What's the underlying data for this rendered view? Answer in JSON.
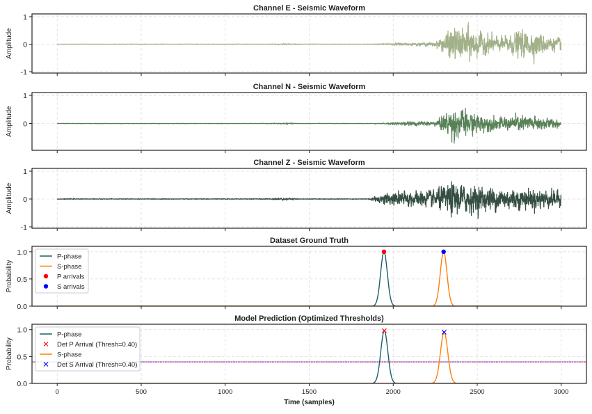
{
  "chart_data": [
    {
      "type": "line",
      "title": "Channel E - Seismic Waveform",
      "ylabel": "Amplitude",
      "xlim": [
        -150,
        3150
      ],
      "ylim": [
        -1.05,
        1.1
      ],
      "yticks": [
        "-1",
        "0",
        "1"
      ],
      "grid": true,
      "color": "#a3b18a",
      "envelope_bin_samples": 100,
      "envelope": [
        0.01,
        0.01,
        0.01,
        0.01,
        0.01,
        0.01,
        0.01,
        0.01,
        0.01,
        0.01,
        0.01,
        0.01,
        0.01,
        0.03,
        0.01,
        0.01,
        0.01,
        0.01,
        0.01,
        0.03,
        0.07,
        0.08,
        0.12,
        0.9,
        1.0,
        0.6,
        0.4,
        0.8,
        0.75,
        0.4
      ]
    },
    {
      "type": "line",
      "title": "Channel N - Seismic Waveform",
      "ylabel": "Amplitude",
      "xlim": [
        -150,
        3150
      ],
      "ylim": [
        -0.95,
        1.1
      ],
      "yticks": [
        "0",
        "1"
      ],
      "grid": true,
      "color": "#588157",
      "envelope_bin_samples": 100,
      "envelope": [
        0.01,
        0.01,
        0.01,
        0.01,
        0.01,
        0.01,
        0.01,
        0.01,
        0.01,
        0.01,
        0.01,
        0.01,
        0.01,
        0.025,
        0.01,
        0.01,
        0.01,
        0.01,
        0.01,
        0.02,
        0.1,
        0.12,
        0.15,
        0.9,
        0.7,
        0.45,
        0.35,
        0.5,
        0.45,
        0.25
      ]
    },
    {
      "type": "line",
      "title": "Channel Z - Seismic Waveform",
      "ylabel": "Amplitude",
      "xlim": [
        -150,
        3150
      ],
      "ylim": [
        -1.05,
        1.1
      ],
      "yticks": [
        "-1",
        "0",
        "1"
      ],
      "grid": true,
      "color": "#344e41",
      "envelope_bin_samples": 100,
      "envelope": [
        0.015,
        0.015,
        0.015,
        0.015,
        0.015,
        0.015,
        0.015,
        0.015,
        0.015,
        0.015,
        0.015,
        0.015,
        0.02,
        0.05,
        0.015,
        0.015,
        0.015,
        0.015,
        0.015,
        0.35,
        0.45,
        0.45,
        0.55,
        0.95,
        0.8,
        0.7,
        0.7,
        0.6,
        0.6,
        0.5
      ]
    },
    {
      "type": "line",
      "title": "Dataset Ground Truth",
      "ylabel": "Probability",
      "xlim": [
        -150,
        3150
      ],
      "ylim": [
        0,
        1.1
      ],
      "yticks": [
        "0.0",
        "0.5",
        "1.0"
      ],
      "grid": true,
      "legend_position": "top-left",
      "series": [
        {
          "name": "P-phase",
          "kind": "gaussian",
          "center": 1945,
          "peak": 1.0,
          "sigma": 20,
          "color": "#1b5e6b"
        },
        {
          "name": "S-phase",
          "kind": "gaussian",
          "center": 2300,
          "peak": 1.0,
          "sigma": 20,
          "color": "#ff7f0e"
        },
        {
          "name": "P arrivals",
          "kind": "marker",
          "marker": "circle",
          "x": 1945,
          "y": 1.0,
          "color": "#ff0000"
        },
        {
          "name": "S arrivals",
          "kind": "marker",
          "marker": "circle",
          "x": 2300,
          "y": 1.0,
          "color": "#0000ff"
        }
      ]
    },
    {
      "type": "line",
      "title": "Model Prediction (Optimized Thresholds)",
      "ylabel": "Probability",
      "xlabel": "Time (samples)",
      "xlim": [
        -150,
        3150
      ],
      "ylim": [
        0,
        1.1
      ],
      "yticks": [
        "0.0",
        "0.5",
        "1.0"
      ],
      "xticks": [
        "0",
        "500",
        "1000",
        "1500",
        "2000",
        "2500",
        "3000"
      ],
      "grid": true,
      "legend_position": "top-left",
      "thresholds": [
        {
          "value": 0.4,
          "color": "#ff0000"
        },
        {
          "value": 0.4,
          "color": "#0000ff"
        }
      ],
      "series": [
        {
          "name": "P-phase",
          "kind": "gaussian",
          "center": 1947,
          "peak": 0.98,
          "sigma": 21,
          "color": "#1b5e6b"
        },
        {
          "name": "Det P Arrival (Thresh=0.40)",
          "kind": "marker",
          "marker": "x",
          "x": 1947,
          "y": 0.98,
          "color": "#ff0000"
        },
        {
          "name": "S-phase",
          "kind": "gaussian",
          "center": 2303,
          "peak": 0.95,
          "sigma": 22,
          "color": "#ff7f0e"
        },
        {
          "name": "Det S Arrival (Thresh=0.40)",
          "kind": "marker",
          "marker": "x",
          "x": 2303,
          "y": 0.95,
          "color": "#0000ff"
        }
      ]
    }
  ]
}
